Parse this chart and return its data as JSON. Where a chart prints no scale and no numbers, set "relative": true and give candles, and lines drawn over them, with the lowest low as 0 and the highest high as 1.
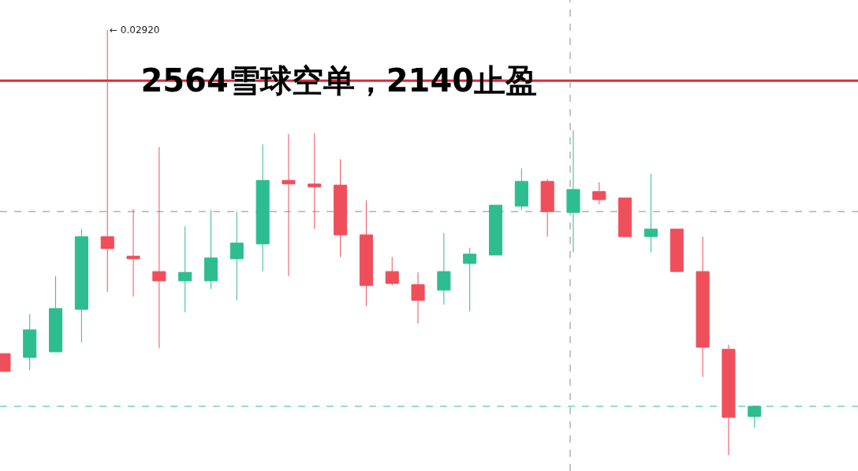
{
  "chart_data": {
    "type": "candlestick",
    "title": "2564雪球空单，2140止盈",
    "relative": true,
    "categories": [
      null,
      null,
      null,
      null,
      null,
      null,
      null,
      null,
      null,
      null,
      null,
      null,
      null,
      null,
      null,
      null,
      null,
      null,
      null,
      null,
      null,
      null,
      null,
      null,
      null,
      null,
      null,
      null,
      null,
      null
    ],
    "ohlc": [
      [
        0.239,
        0.239,
        0.197,
        0.197
      ],
      [
        0.23,
        0.332,
        0.2,
        0.295
      ],
      [
        0.243,
        0.421,
        0.243,
        0.345
      ],
      [
        0.343,
        0.532,
        0.265,
        0.514
      ],
      [
        0.514,
        1,
        0.384,
        0.486
      ],
      [
        0.468,
        0.579,
        0.373,
        0.462
      ],
      [
        0.432,
        0.725,
        0.252,
        0.41
      ],
      [
        0.41,
        0.538,
        0.336,
        0.43
      ],
      [
        0.41,
        0.577,
        0.391,
        0.464
      ],
      [
        0.462,
        0.573,
        0.365,
        0.499
      ],
      [
        0.497,
        0.731,
        0.432,
        0.646
      ],
      [
        0.646,
        0.755,
        0.421,
        0.638
      ],
      [
        0.638,
        0.757,
        0.532,
        0.631
      ],
      [
        0.635,
        0.696,
        0.466,
        0.518
      ],
      [
        0.518,
        0.599,
        0.351,
        0.399
      ],
      [
        0.432,
        0.466,
        0.399,
        0.404
      ],
      [
        0.401,
        0.43,
        0.31,
        0.364
      ],
      [
        0.388,
        0.523,
        0.354,
        0.432
      ],
      [
        0.451,
        0.488,
        0.338,
        0.473
      ],
      [
        0.471,
        0.588,
        0.471,
        0.588
      ],
      [
        0.586,
        0.675,
        0.577,
        0.644
      ],
      [
        0.644,
        0.649,
        0.514,
        0.573
      ],
      [
        0.571,
        0.764,
        0.477,
        0.625
      ],
      [
        0.62,
        0.642,
        0.59,
        0.601
      ],
      [
        0.605,
        0.605,
        0.514,
        0.514
      ],
      [
        0.514,
        0.662,
        0.477,
        0.532
      ],
      [
        0.532,
        0.532,
        0.432,
        0.432
      ],
      [
        0.432,
        0.514,
        0.184,
        0.254
      ],
      [
        0.249,
        0.26,
        0,
        0.089
      ],
      [
        0.091,
        0.117,
        0.065,
        0.115
      ]
    ],
    "colors": [
      "#ef4f5a",
      "#2dbd91",
      "#2dbd91",
      "#2dbd91",
      "#ef4f5a",
      "#ef4f5a",
      "#ef4f5a",
      "#2dbd91",
      "#2dbd91",
      "#2dbd91",
      "#2dbd91",
      "#ef4f5a",
      "#ef4f5a",
      "#ef4f5a",
      "#ef4f5a",
      "#ef4f5a",
      "#ef4f5a",
      "#2dbd91",
      "#2dbd91",
      "#2dbd91",
      "#2dbd91",
      "#ef4f5a",
      "#2dbd91",
      "#ef4f5a",
      "#ef4f5a",
      "#2dbd91",
      "#ef4f5a",
      "#ef4f5a",
      "#ef4f5a",
      "#2dbd91"
    ],
    "annotations": [
      "← 0.02920"
    ],
    "ref_lines": [
      {
        "axis": "y",
        "value": 0.881,
        "label": null,
        "color": "#e02a36",
        "line_style": "solid"
      },
      {
        "axis": "y",
        "value": 0.573,
        "label": null,
        "color": "#8a8a8a",
        "line_style": "dashed"
      },
      {
        "axis": "y",
        "value": 0.115,
        "label": null,
        "color": "#2dbd91",
        "line_style": "dashed"
      }
    ]
  }
}
